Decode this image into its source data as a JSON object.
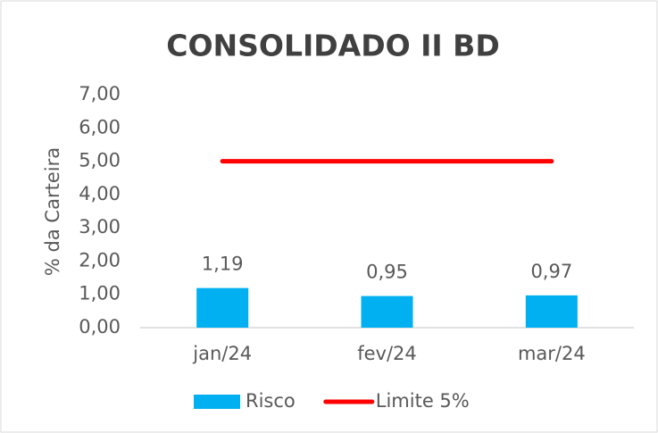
{
  "chart_data": {
    "type": "bar",
    "title": "CONSOLIDADO II BD",
    "y_label": "% da Carteira",
    "categories": [
      "jan/24",
      "fev/24",
      "mar/24"
    ],
    "series": [
      {
        "name": "Risco",
        "type": "bar",
        "color": "#00b0f0",
        "values": [
          1.19,
          0.95,
          0.97
        ],
        "value_labels": [
          "1,19",
          "0,95",
          "0,97"
        ]
      },
      {
        "name": "Limite 5%",
        "type": "line",
        "color": "#ff0000",
        "values": [
          5,
          5,
          5
        ]
      }
    ],
    "ylim": [
      0,
      7
    ],
    "yticks": [
      {
        "value": 0,
        "label": "0,00"
      },
      {
        "value": 1,
        "label": "1,00"
      },
      {
        "value": 2,
        "label": "2,00"
      },
      {
        "value": 3,
        "label": "3,00"
      },
      {
        "value": 4,
        "label": "4,00"
      },
      {
        "value": 5,
        "label": "5,00"
      },
      {
        "value": 6,
        "label": "6,00"
      },
      {
        "value": 7,
        "label": "7,00"
      }
    ],
    "grid": false,
    "legend": "bottom"
  }
}
